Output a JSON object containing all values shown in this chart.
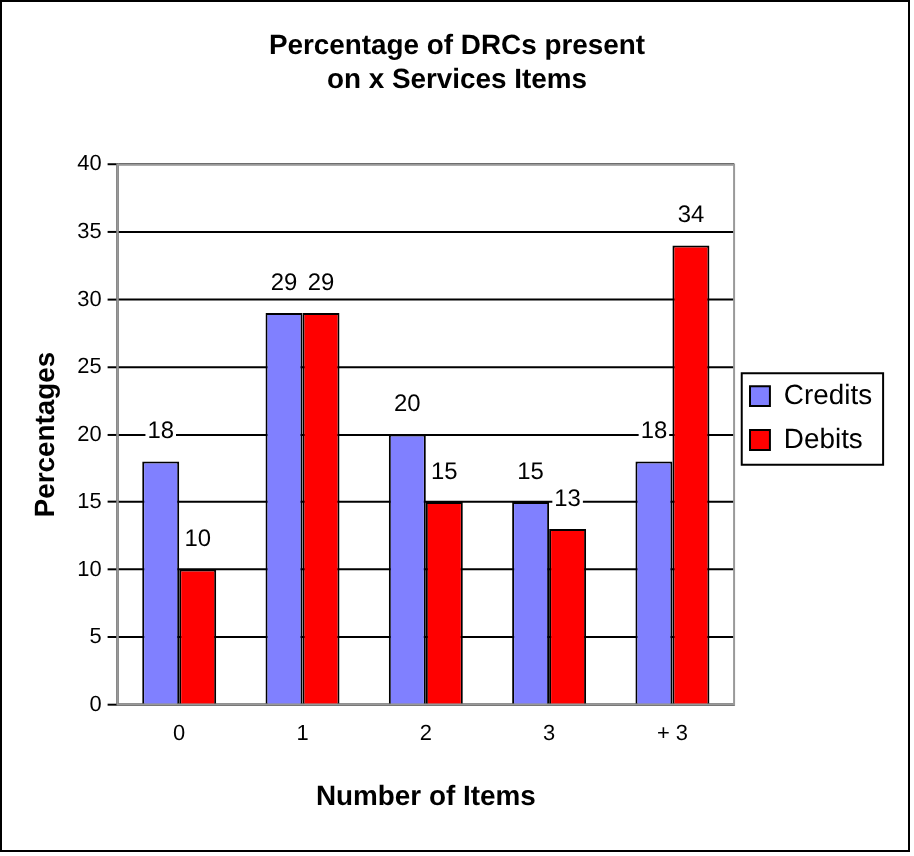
{
  "chart_data": {
    "type": "bar",
    "title": "Percentage of DRCs present on x Services Items",
    "xlabel": "Number of Items",
    "ylabel": "Percentages",
    "categories": [
      "0",
      "1",
      "2",
      "3",
      "+ 3"
    ],
    "series": [
      {
        "name": "Credits",
        "color": "#8080ff",
        "values": [
          18,
          29,
          20,
          15,
          18
        ]
      },
      {
        "name": "Debits",
        "color": "#ff0000",
        "values": [
          10,
          29,
          15,
          13,
          34
        ]
      }
    ],
    "ylim": [
      0,
      40
    ],
    "yticks": [
      0,
      5,
      10,
      15,
      20,
      25,
      30,
      35,
      40
    ],
    "grid": "y",
    "legend": "right",
    "data_labels": true
  }
}
